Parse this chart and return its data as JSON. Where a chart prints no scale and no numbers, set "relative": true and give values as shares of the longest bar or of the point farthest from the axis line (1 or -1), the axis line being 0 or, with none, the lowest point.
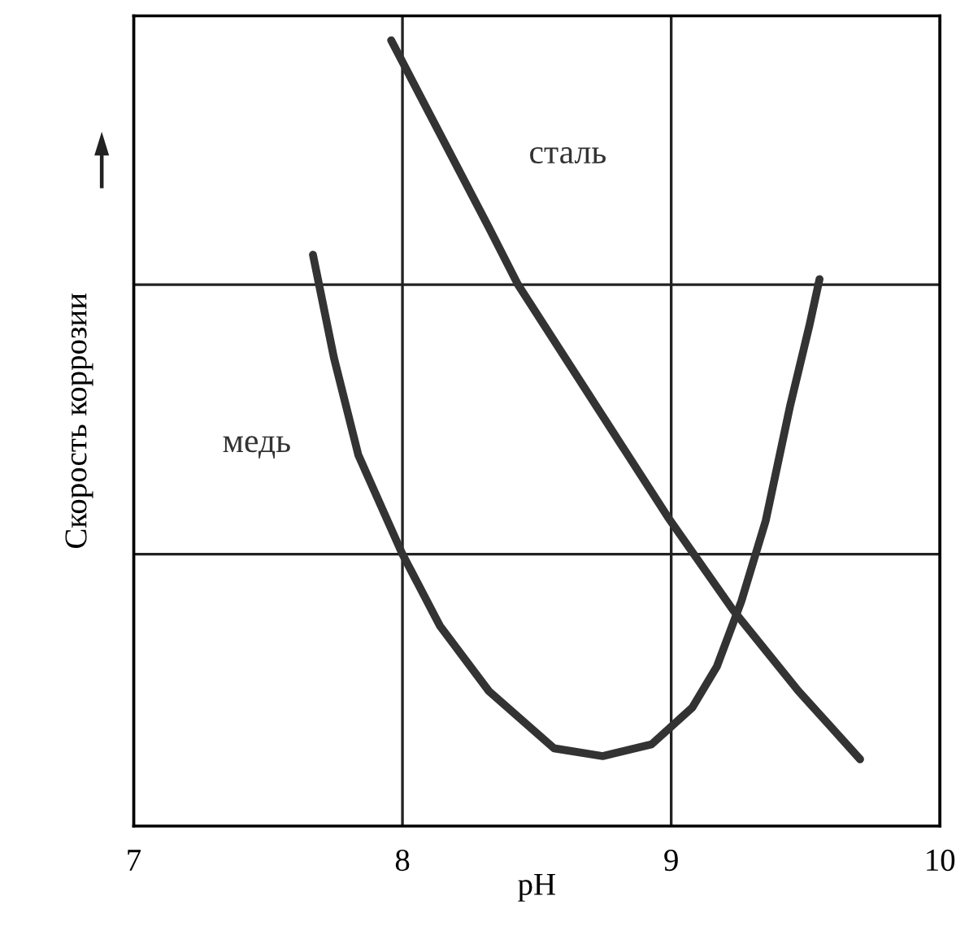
{
  "chart_data": {
    "type": "line",
    "xlabel": "pH",
    "ylabel": "Скорость коррозии",
    "relative": true,
    "xlim": [
      7,
      10
    ],
    "xticks": [
      7,
      8,
      9,
      10
    ],
    "grid": "x",
    "marker": "none",
    "line_style": "solid",
    "ref_lines": [
      {
        "axis": "y",
        "value": 0.346,
        "color": "#222222"
      },
      {
        "axis": "y",
        "value": 0.689,
        "color": "#222222"
      }
    ],
    "series": [
      {
        "name": "сталь",
        "color": "#333333",
        "x": [
          7.958,
          8.321,
          8.43,
          8.624,
          8.988,
          9.23,
          9.473,
          9.703
        ],
        "values": [
          1.0,
          0.762,
          0.689,
          0.586,
          0.393,
          0.275,
          0.172,
          0.085
        ]
      },
      {
        "name": "медь",
        "color": "#333333",
        "x": [
          7.667,
          7.745,
          7.836,
          8.0,
          8.139,
          8.321,
          8.564,
          8.745,
          8.927,
          9.079,
          9.17,
          9.261,
          9.352,
          9.442,
          9.515,
          9.552
        ],
        "values": [
          0.727,
          0.596,
          0.472,
          0.346,
          0.255,
          0.172,
          0.099,
          0.089,
          0.104,
          0.151,
          0.203,
          0.286,
          0.389,
          0.534,
          0.638,
          0.696
        ]
      }
    ]
  }
}
